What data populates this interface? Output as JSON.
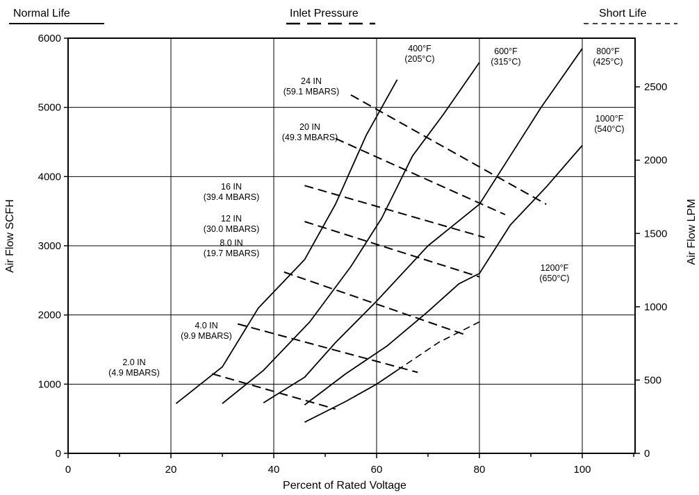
{
  "header": {
    "normal_life": "Normal Life",
    "inlet_pressure": "Inlet Pressure",
    "short_life": "Short Life"
  },
  "chart_data": {
    "type": "line",
    "xlabel": "Percent of Rated Voltage",
    "ylabel": "Air Flow SCFH",
    "y2label": "Air Flow LPM",
    "xlim": [
      0,
      110
    ],
    "ylim": [
      0,
      6000
    ],
    "y2lim": [
      0,
      2832
    ],
    "x_ticks": [
      0,
      20,
      40,
      60,
      80,
      100
    ],
    "y_ticks": [
      0,
      1000,
      2000,
      3000,
      4000,
      5000,
      6000
    ],
    "y2_ticks": [
      0,
      500,
      1000,
      1500,
      2000,
      2500
    ],
    "grid": true,
    "series": [
      {
        "name": "400°F (205°C)",
        "style": "solid",
        "points": [
          [
            21,
            720
          ],
          [
            30,
            1250
          ],
          [
            37,
            2100
          ],
          [
            46,
            2800
          ],
          [
            52,
            3600
          ],
          [
            58,
            4600
          ],
          [
            64,
            5400
          ]
        ]
      },
      {
        "name": "600°F (315°C)",
        "style": "solid",
        "points": [
          [
            30,
            720
          ],
          [
            38,
            1200
          ],
          [
            47,
            1900
          ],
          [
            55,
            2700
          ],
          [
            61,
            3400
          ],
          [
            67,
            4300
          ],
          [
            73,
            4900
          ],
          [
            80,
            5650
          ]
        ]
      },
      {
        "name": "800°F (425°C)",
        "style": "solid",
        "points": [
          [
            38,
            730
          ],
          [
            46,
            1100
          ],
          [
            52,
            1600
          ],
          [
            60,
            2200
          ],
          [
            70,
            3000
          ],
          [
            80,
            3600
          ],
          [
            86,
            4300
          ],
          [
            92,
            5000
          ],
          [
            100,
            5850
          ]
        ]
      },
      {
        "name": "1000°F (540°C)",
        "style": "solid",
        "points": [
          [
            46,
            700
          ],
          [
            54,
            1150
          ],
          [
            62,
            1550
          ],
          [
            70,
            2050
          ],
          [
            76,
            2450
          ],
          [
            80,
            2600
          ],
          [
            86,
            3300
          ],
          [
            93,
            3850
          ],
          [
            100,
            4450
          ]
        ]
      },
      {
        "name": "1200°F (650°C)",
        "style": "solid",
        "points": [
          [
            46,
            450
          ],
          [
            54,
            750
          ],
          [
            60,
            1000
          ],
          [
            64,
            1200
          ]
        ]
      },
      {
        "name": "1200°F (650°C) short life",
        "style": "dashed",
        "points": [
          [
            64,
            1200
          ],
          [
            72,
            1600
          ],
          [
            80,
            1900
          ]
        ]
      }
    ],
    "isobars": [
      {
        "label": "24 IN",
        "label2": "(59.1 MBARS)",
        "points": [
          [
            55,
            5180
          ],
          [
            93,
            3600
          ]
        ]
      },
      {
        "label": "20 IN",
        "label2": "(49.3 MBARS)",
        "points": [
          [
            52,
            4550
          ],
          [
            85,
            3450
          ]
        ]
      },
      {
        "label": "16 IN",
        "label2": "(39.4 MBARS)",
        "points": [
          [
            46,
            3870
          ],
          [
            81,
            3120
          ]
        ]
      },
      {
        "label": "12 IN",
        "label2": "(30.0 MBARS)",
        "points": [
          [
            46,
            3350
          ],
          [
            80,
            2550
          ]
        ]
      },
      {
        "label": "8.0  IN",
        "label2": "(19.7 MBARS)",
        "points": [
          [
            42,
            2620
          ],
          [
            77,
            1720
          ]
        ]
      },
      {
        "label": "4.0 IN",
        "label2": "(9.9 MBARS)",
        "points": [
          [
            33,
            1870
          ],
          [
            68,
            1170
          ]
        ]
      },
      {
        "label": "2.0 IN",
        "label2": "(4.9 MBARS)",
        "points": [
          [
            28,
            1150
          ],
          [
            52,
            640
          ]
        ]
      }
    ],
    "temperature_labels": [
      {
        "line1": "400°F",
        "line2": "(205°C)"
      },
      {
        "line1": "600°F",
        "line2": "(315°C)"
      },
      {
        "line1": "800°F",
        "line2": "(425°C)"
      },
      {
        "line1": "1000°F",
        "line2": "(540°C)"
      },
      {
        "line1": "1200°F",
        "line2": "(650°C)"
      }
    ]
  }
}
